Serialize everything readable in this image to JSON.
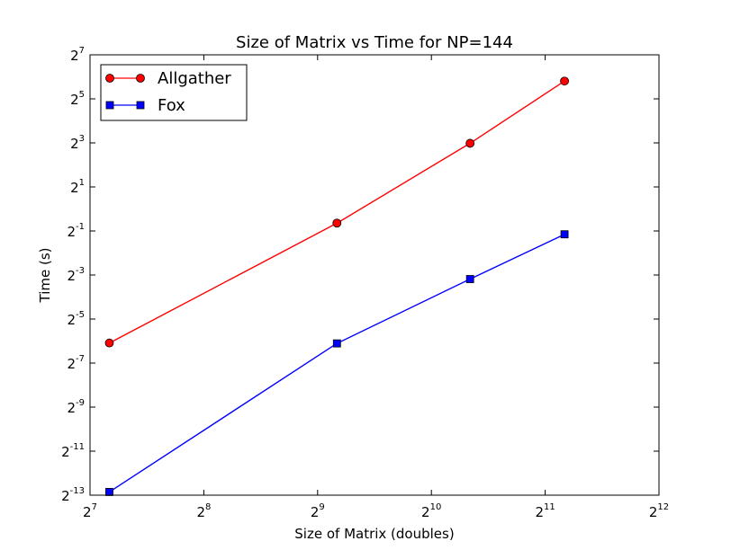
{
  "chart_data": {
    "type": "line",
    "title": "Size of Matrix vs Time for NP=144",
    "xlabel": "Size of Matrix (doubles)",
    "ylabel": "Time (s)",
    "xscale": "log2",
    "yscale": "log2",
    "xlim": [
      128,
      4096
    ],
    "ylim": [
      0.0001220703125,
      128
    ],
    "x_ticks": [
      {
        "base": "2",
        "exp": "7",
        "value": 128
      },
      {
        "base": "2",
        "exp": "8",
        "value": 256
      },
      {
        "base": "2",
        "exp": "9",
        "value": 512
      },
      {
        "base": "2",
        "exp": "10",
        "value": 1024
      },
      {
        "base": "2",
        "exp": "11",
        "value": 2048
      },
      {
        "base": "2",
        "exp": "12",
        "value": 4096
      }
    ],
    "y_ticks": [
      {
        "base": "2",
        "exp": "-13",
        "value": 0.0001220703125
      },
      {
        "base": "2",
        "exp": "-11",
        "value": 0.00048828125
      },
      {
        "base": "2",
        "exp": "-9",
        "value": 0.001953125
      },
      {
        "base": "2",
        "exp": "-7",
        "value": 0.0078125
      },
      {
        "base": "2",
        "exp": "-5",
        "value": 0.03125
      },
      {
        "base": "2",
        "exp": "-3",
        "value": 0.125
      },
      {
        "base": "2",
        "exp": "-1",
        "value": 0.5
      },
      {
        "base": "2",
        "exp": "1",
        "value": 2
      },
      {
        "base": "2",
        "exp": "3",
        "value": 8
      },
      {
        "base": "2",
        "exp": "5",
        "value": 32
      },
      {
        "base": "2",
        "exp": "7",
        "value": 128
      }
    ],
    "x": [
      144,
      576,
      1296,
      2304
    ],
    "series": [
      {
        "name": "Allgather",
        "color": "#ff0000",
        "marker": "circle",
        "values": [
          0.0147,
          0.64,
          7.9,
          56.0
        ]
      },
      {
        "name": "Fox",
        "color": "#0000ff",
        "marker": "square",
        "values": [
          0.000135,
          0.0145,
          0.11,
          0.45
        ]
      }
    ],
    "legend_position": "top-left",
    "grid": false
  }
}
